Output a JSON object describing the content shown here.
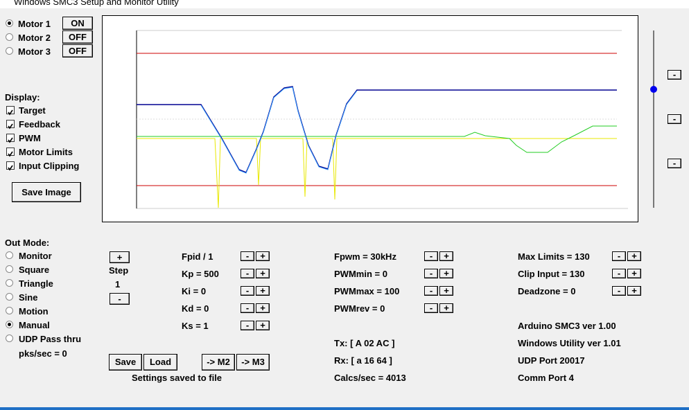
{
  "window": {
    "title": "Windows SMC3 Setup and Monitor Utility"
  },
  "motors": [
    {
      "label": "Motor 1",
      "state": "ON",
      "selected": true
    },
    {
      "label": "Motor 2",
      "state": "OFF",
      "selected": false
    },
    {
      "label": "Motor 3",
      "state": "OFF",
      "selected": false
    }
  ],
  "display": {
    "label": "Display:",
    "options": [
      {
        "label": "Target",
        "checked": true
      },
      {
        "label": "Feedback",
        "checked": true
      },
      {
        "label": "PWM",
        "checked": true
      },
      {
        "label": "Motor Limits",
        "checked": true
      },
      {
        "label": "Input Clipping",
        "checked": true
      }
    ]
  },
  "save_image": "Save Image",
  "out_mode": {
    "label": "Out Mode:",
    "options": [
      {
        "label": "Monitor",
        "selected": false
      },
      {
        "label": "Square",
        "selected": false
      },
      {
        "label": "Triangle",
        "selected": false
      },
      {
        "label": "Sine",
        "selected": false
      },
      {
        "label": "Motion",
        "selected": false
      },
      {
        "label": "Manual",
        "selected": true
      },
      {
        "label": "UDP Pass thru",
        "selected": false
      }
    ],
    "rate": "pks/sec = 0"
  },
  "adjust": {
    "minus": "-",
    "plus": "+"
  },
  "step": {
    "label": "Step",
    "value": "1"
  },
  "pid": [
    "Fpid / 1",
    "Kp = 500",
    "Ki = 0",
    "Kd = 0",
    "Ks = 1"
  ],
  "pwm": [
    "Fpwm = 30kHz",
    "PWMmin = 0",
    "PWMmax = 100",
    "PWMrev = 0"
  ],
  "limits": [
    "Max Limits = 130",
    "Clip Input = 130",
    "Deadzone = 0"
  ],
  "buttons": [
    "Save",
    "Load",
    "-> M2",
    "-> M3"
  ],
  "status": "Settings saved to file",
  "comm": [
    "Tx: [ A 02 AC ]",
    "Rx: [ a 16 64 ]",
    "Calcs/sec = 4013"
  ],
  "info": [
    "Arduino SMC3 ver 1.00",
    "Windows Utility ver 1.01",
    "UDP Port 20017",
    "Comm Port 4"
  ]
}
